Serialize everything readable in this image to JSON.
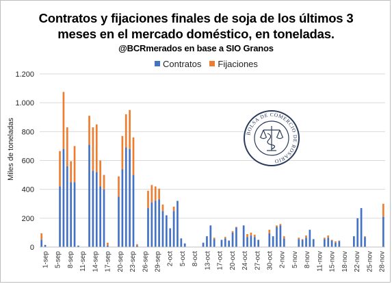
{
  "title_line1": "Contratos y fijaciones finales de soja de los últimos 3",
  "title_line2": "meses en el mercado doméstico, en toneladas.",
  "subtitle": "@BCRmerados en base a SIO Granos",
  "logo_text": "BOLSA DE COMERCIO DE ROSARIO",
  "colors": {
    "contratos": "#4472c4",
    "fijaciones": "#ed7d31",
    "grid": "#d9d9d9"
  },
  "chart_data": {
    "type": "bar",
    "stacked": true,
    "title": "Contratos y fijaciones finales de soja de los últimos 3 meses en el mercado doméstico, en toneladas.",
    "ylabel": "Miles de toneladas",
    "xlabel": "",
    "ylim": [
      0,
      1200
    ],
    "yticks": [
      0,
      200,
      400,
      600,
      800,
      1000,
      1200
    ],
    "ytick_labels": [
      "0",
      "200",
      "400",
      "600",
      "800",
      "1.000",
      "1.200"
    ],
    "grid": true,
    "legend_position": "top-center",
    "x_tick_labels": [
      "1-sep",
      "5-sep",
      "8-sep",
      "11-sep",
      "14-sep",
      "17-sep",
      "20-sep",
      "23-sep",
      "26-sep",
      "29-sep",
      "2-oct",
      "5-oct",
      "8-oct",
      "13-oct",
      "17-oct",
      "20-oct",
      "24-oct",
      "27-oct",
      "30-oct",
      "2-nov",
      "5-nov",
      "8-nov",
      "11-nov",
      "15-nov",
      "18-nov",
      "22-nov",
      "25-nov",
      "28-nov"
    ],
    "series": [
      {
        "name": "Contratos",
        "values": [
          50,
          15,
          0,
          0,
          0,
          420,
          680,
          560,
          450,
          450,
          10,
          0,
          0,
          710,
          530,
          520,
          420,
          400,
          10,
          0,
          0,
          350,
          540,
          690,
          680,
          500,
          10,
          0,
          0,
          270,
          310,
          320,
          330,
          250,
          220,
          130,
          250,
          320,
          60,
          25,
          0,
          0,
          0,
          0,
          30,
          75,
          150,
          55,
          0,
          50,
          60,
          45,
          100,
          135,
          0,
          150,
          70,
          80,
          70,
          50,
          0,
          0,
          95,
          75,
          140,
          150,
          60,
          0,
          0,
          0,
          55,
          50,
          65,
          120,
          55,
          0,
          0,
          55,
          65,
          45,
          30,
          40,
          0,
          0,
          0,
          75,
          200,
          270,
          70,
          0,
          0,
          0,
          0,
          210
        ]
      },
      {
        "name": "Fijaciones",
        "values": [
          45,
          0,
          0,
          0,
          0,
          245,
          395,
          270,
          145,
          250,
          0,
          0,
          0,
          200,
          300,
          330,
          180,
          100,
          20,
          0,
          0,
          140,
          230,
          230,
          270,
          260,
          10,
          0,
          0,
          120,
          120,
          100,
          75,
          45,
          0,
          0,
          30,
          0,
          0,
          0,
          0,
          0,
          0,
          0,
          0,
          0,
          0,
          10,
          0,
          0,
          10,
          0,
          10,
          5,
          0,
          0,
          20,
          20,
          15,
          0,
          0,
          0,
          25,
          0,
          10,
          10,
          15,
          0,
          0,
          0,
          10,
          5,
          15,
          0,
          0,
          0,
          0,
          10,
          15,
          5,
          10,
          5,
          0,
          0,
          0,
          0,
          0,
          0,
          5,
          0,
          0,
          0,
          0,
          90
        ]
      }
    ]
  }
}
